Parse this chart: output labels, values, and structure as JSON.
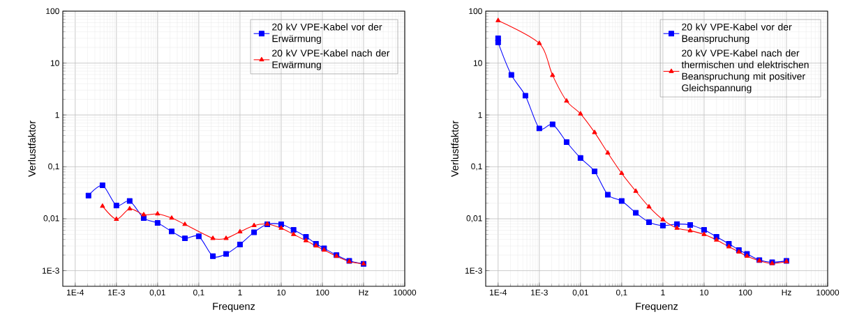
{
  "chart_data": [
    {
      "type": "line",
      "xlabel": "Frequenz",
      "ylabel": "Verlustfaktor",
      "log": "xy",
      "grid": true,
      "legend": "top right",
      "xlim": [
        5e-05,
        10000
      ],
      "ylim": [
        0.0005,
        100
      ],
      "xticks": [
        {
          "value": 0.0001,
          "label": "1E-4"
        },
        {
          "value": 0.001,
          "label": "1E-3"
        },
        {
          "value": 0.01,
          "label": "0,01"
        },
        {
          "value": 0.1,
          "label": "0,1"
        },
        1,
        10,
        100,
        {
          "value": 1000,
          "label": "Hz"
        },
        10000
      ],
      "yticks": [
        {
          "value": 0.001,
          "label": "1E-3"
        },
        {
          "value": 0.01,
          "label": "0,01"
        },
        {
          "value": 0.1,
          "label": "0,1"
        },
        1,
        10,
        100
      ],
      "series": [
        {
          "name": "20 kV VPE-Kabel vor der Erwärmung",
          "color": "#0000ff",
          "marker": "square",
          "x": [
            0.00021,
            0.00046,
            0.001,
            0.0021,
            0.0046,
            0.01,
            0.022,
            0.046,
            0.1,
            0.22,
            0.46,
            1,
            2.2,
            4.6,
            10,
            20,
            40,
            70,
            110,
            220,
            450,
            1000
          ],
          "values": [
            0.028,
            0.044,
            0.018,
            0.022,
            0.0103,
            0.0083,
            0.0057,
            0.0042,
            0.0046,
            0.0019,
            0.0021,
            0.0032,
            0.0055,
            0.0078,
            0.0078,
            0.0061,
            0.0045,
            0.0033,
            0.0027,
            0.002,
            0.00155,
            0.00135
          ]
        },
        {
          "name": "20 kV VPE-Kabel nach der Erwärmung",
          "color": "#ff0000",
          "marker": "triangle",
          "x": [
            0.00046,
            0.001,
            0.0021,
            0.0046,
            0.01,
            0.022,
            0.046,
            0.22,
            0.46,
            1,
            2.2,
            4.6,
            10,
            20,
            40,
            70,
            110,
            220,
            450,
            1000
          ],
          "values": [
            0.0175,
            0.0098,
            0.0156,
            0.012,
            0.0124,
            0.0103,
            0.0078,
            0.0042,
            0.0042,
            0.0056,
            0.0074,
            0.0079,
            0.0066,
            0.005,
            0.0038,
            0.003,
            0.0025,
            0.0019,
            0.0015,
            0.00135
          ]
        }
      ]
    },
    {
      "type": "line",
      "xlabel": "Frequenz",
      "ylabel": "Verlustfaktor",
      "log": "xy",
      "grid": true,
      "legend": "top right",
      "xlim": [
        5e-05,
        10000
      ],
      "ylim": [
        0.0005,
        100
      ],
      "xticks": [
        {
          "value": 0.0001,
          "label": "1E-4"
        },
        {
          "value": 0.001,
          "label": "1E-3"
        },
        {
          "value": 0.01,
          "label": "0,01"
        },
        {
          "value": 0.1,
          "label": "0,1"
        },
        1,
        10,
        100,
        {
          "value": 1000,
          "label": "Hz"
        },
        10000
      ],
      "yticks": [
        {
          "value": 0.001,
          "label": "1E-3"
        },
        {
          "value": 0.01,
          "label": "0,01"
        },
        {
          "value": 0.1,
          "label": "0,1"
        },
        1,
        10,
        100
      ],
      "series": [
        {
          "name": "20 kV VPE-Kabel vor der Beanspruchung",
          "color": "#0000ff",
          "marker": "square",
          "x": [
            0.0001,
            0.0001,
            0.00021,
            0.00046,
            0.001,
            0.0021,
            0.0046,
            0.01,
            0.022,
            0.046,
            0.1,
            0.22,
            0.46,
            1,
            2.2,
            4.6,
            10,
            20,
            40,
            70,
            110,
            220,
            450,
            1000
          ],
          "values": [
            30,
            25,
            5.9,
            2.35,
            0.55,
            0.66,
            0.3,
            0.148,
            0.082,
            0.029,
            0.022,
            0.013,
            0.0086,
            0.0074,
            0.0079,
            0.0076,
            0.0061,
            0.0045,
            0.0033,
            0.0025,
            0.0021,
            0.0016,
            0.00145,
            0.00155
          ]
        },
        {
          "name": "20 kV VPE-Kabel nach der thermischen und elektrischen Beanspruchung mit positiver Gleichspannung",
          "color": "#ff0000",
          "marker": "triangle",
          "x": [
            0.0001,
            0.001,
            0.0021,
            0.0046,
            0.01,
            0.022,
            0.046,
            0.1,
            0.22,
            0.46,
            1,
            2.2,
            4.6,
            10,
            20,
            40,
            70,
            110,
            220,
            450,
            1000
          ],
          "values": [
            66,
            24,
            5.8,
            1.86,
            1.05,
            0.46,
            0.186,
            0.075,
            0.034,
            0.017,
            0.0096,
            0.0066,
            0.0059,
            0.005,
            0.0039,
            0.0029,
            0.0023,
            0.0019,
            0.00155,
            0.00138,
            0.0015
          ]
        }
      ]
    }
  ]
}
